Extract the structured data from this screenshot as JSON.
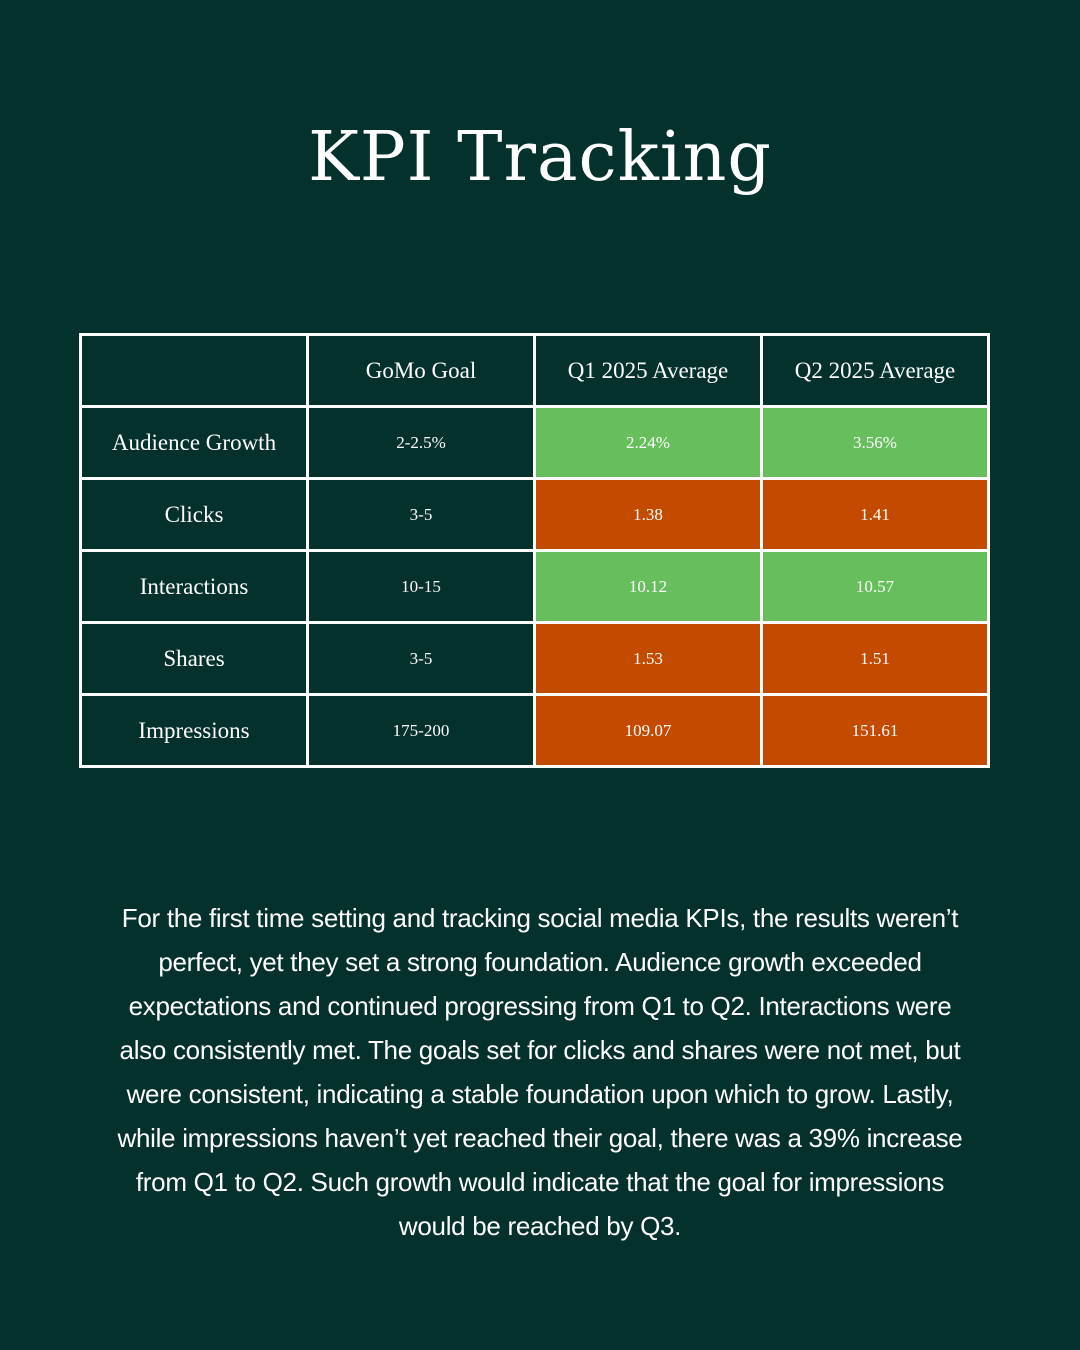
{
  "header": {
    "title": "KPI Tracking"
  },
  "table": {
    "header": [
      "GoMo Goal",
      "Q1 2025 Average",
      "Q2 2025 Average"
    ],
    "rows": [
      [
        "Audience Growth",
        "2-2.5%",
        "2.24%",
        "3.56%"
      ],
      [
        "Clicks",
        "3-5",
        "1.38",
        "1.41"
      ],
      [
        "Interactions",
        "10-15",
        "10.12",
        "10.57"
      ],
      [
        "Shares",
        "3-5",
        "1.53",
        "1.51"
      ],
      [
        "Impressions",
        "175-200",
        "109.07",
        "151.61"
      ]
    ]
  },
  "body": {
    "paragraph": "For the first time setting and tracking social media KPIs, the results weren’t perfect, yet they set a strong foundation. Audience growth exceeded expectations and continued progressing from Q1 to Q2. Interactions were also consistently met. The goals set for clicks and shares were not met, but were consistent, indicating a stable foundation upon which to grow. Lastly, while impressions haven’t yet reached their goal, there was a 39% increase from Q1 to Q2. Such growth would indicate that the goal for impressions would be reached by Q3."
  }
}
